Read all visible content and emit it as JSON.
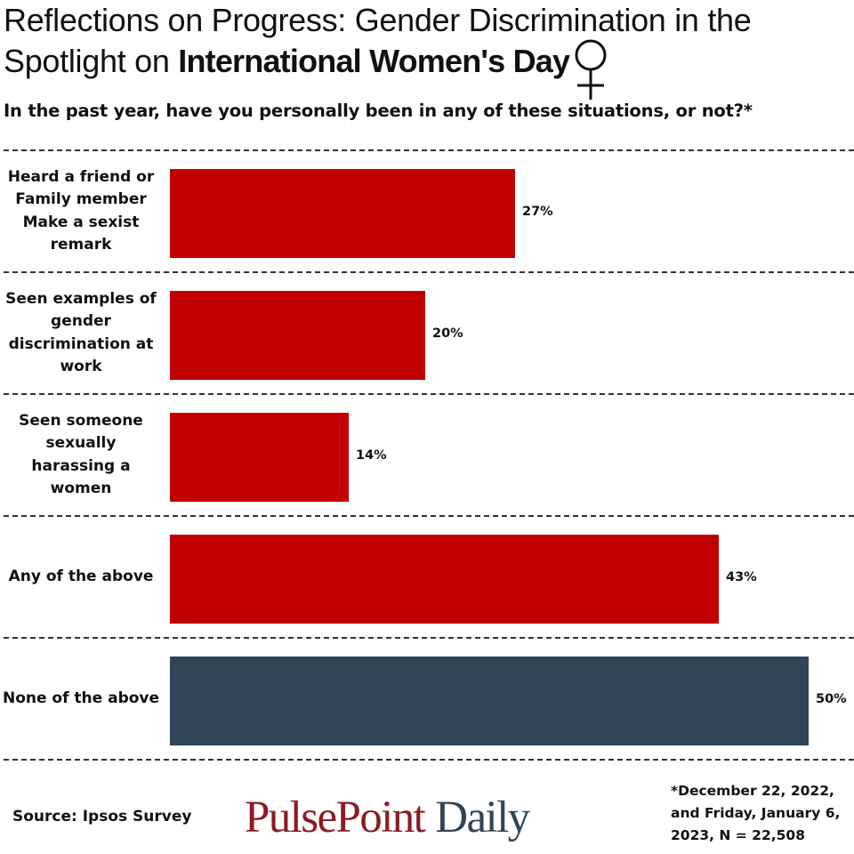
{
  "header": {
    "title_part1": "Reflections on Progress: Gender Discrimination in the Spotlight on",
    "title_bold": "International Women's Day",
    "subtitle": "In the past year, have you personally been in any of these situations, or not?*"
  },
  "chart_data": {
    "type": "bar",
    "orientation": "horizontal",
    "categories": [
      "Heard a friend or\nFamily  member\nMake a sexist\nremark",
      "Seen examples  of\ngender\ndiscrimination at\nwork",
      "Seen someone\nsexually\nharassing a\nwomen",
      "Any of the above",
      "None of the above"
    ],
    "values": [
      27,
      20,
      14,
      43,
      50
    ],
    "value_labels": [
      "27%",
      "20%",
      "14%",
      "43%",
      "50%"
    ],
    "colors": [
      "#c00000",
      "#c00000",
      "#c00000",
      "#c00000",
      "#314556"
    ],
    "xlim": [
      0,
      50
    ],
    "unit": "%",
    "grid": false
  },
  "icons": {
    "title_icon": "venus-icon"
  },
  "footer": {
    "source": "Source: Ipsos Survey",
    "brand_part1": "PulsePoint",
    "brand_part2": "Daily",
    "footnote": "*December 22, 2022, and Friday, January 6, 2023, N = 22,508"
  }
}
